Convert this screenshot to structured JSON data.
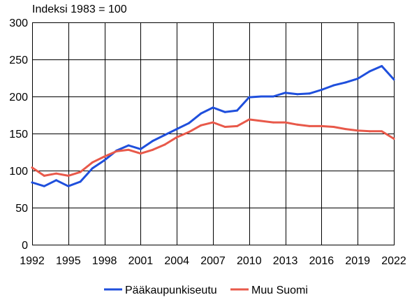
{
  "chart_data": {
    "type": "line",
    "unit_label": "Indeksi 1983 = 100",
    "x": [
      1992,
      1993,
      1994,
      1995,
      1996,
      1997,
      1998,
      1999,
      2000,
      2001,
      2002,
      2003,
      2004,
      2005,
      2006,
      2007,
      2008,
      2009,
      2010,
      2011,
      2012,
      2013,
      2014,
      2015,
      2016,
      2017,
      2018,
      2019,
      2020,
      2021,
      2022
    ],
    "xlim": [
      1992,
      2022
    ],
    "x_ticks": [
      "1992",
      "1995",
      "1998",
      "2001",
      "2004",
      "2007",
      "2010",
      "2013",
      "2016",
      "2019",
      "2022"
    ],
    "ylim": [
      0,
      300
    ],
    "y_ticks": [
      "0",
      "50",
      "100",
      "150",
      "200",
      "250",
      "300"
    ],
    "grid": true,
    "legend_position": "bottom",
    "series": [
      {
        "name": "Pääkaupunkiseutu",
        "color": "#1f4fdc",
        "values": [
          84,
          79,
          87,
          79,
          85,
          103,
          114,
          127,
          134,
          129,
          140,
          148,
          156,
          164,
          177,
          185,
          179,
          181,
          199,
          200,
          200,
          205,
          203,
          204,
          209,
          215,
          219,
          224,
          234,
          241,
          223
        ]
      },
      {
        "name": "Muu Suomi",
        "color": "#e8594a",
        "values": [
          104,
          93,
          96,
          93,
          98,
          111,
          119,
          126,
          128,
          123,
          128,
          135,
          145,
          152,
          161,
          165,
          159,
          160,
          169,
          167,
          165,
          165,
          162,
          160,
          160,
          159,
          156,
          154,
          153,
          153,
          143
        ]
      }
    ]
  }
}
